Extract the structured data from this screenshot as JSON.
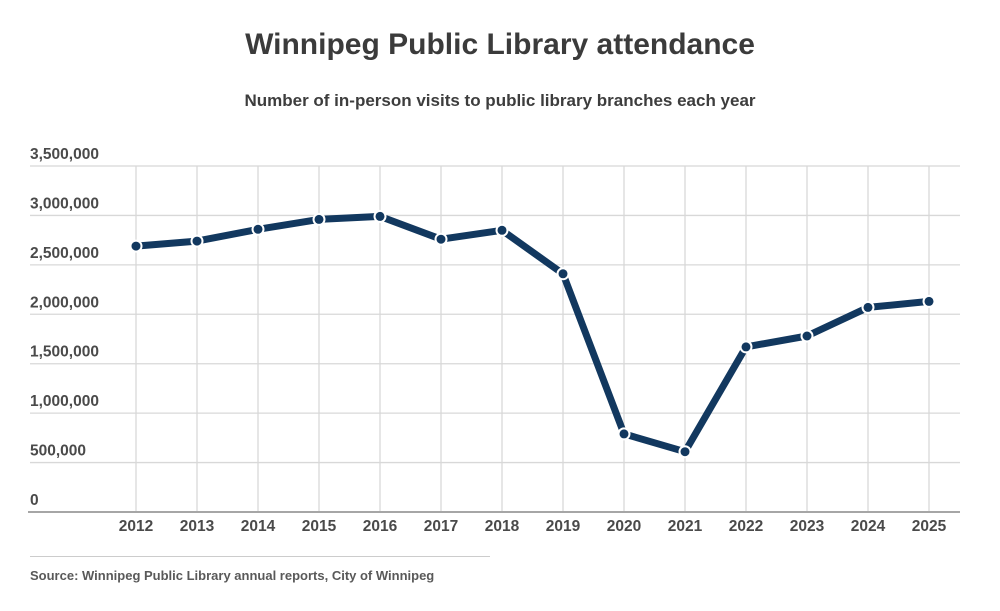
{
  "header": {
    "title": "Winnipeg Public Library attendance",
    "subtitle": "Number of in-person visits to public library branches each year"
  },
  "source": {
    "text": "Source: Winnipeg Public Library annual reports, City of Winnipeg"
  },
  "colors": {
    "line": "#12385f",
    "marker_fill": "#12385f",
    "marker_ring": "#ffffff",
    "grid": "#d8d8d8",
    "axis": "#a6a6a6",
    "title_text": "#3b3b3b",
    "tick_text": "#4a4a4a",
    "source_text": "#595959",
    "background": "#ffffff"
  },
  "chart_data": {
    "type": "line",
    "title": "Winnipeg Public Library attendance",
    "subtitle": "Number of in-person visits to public library branches each year",
    "xlabel": "",
    "ylabel": "",
    "categories": [
      2012,
      2013,
      2014,
      2015,
      2016,
      2017,
      2018,
      2019,
      2020,
      2021,
      2022,
      2023,
      2024,
      2025
    ],
    "values": [
      2690000,
      2740000,
      2860000,
      2960000,
      2990000,
      2760000,
      2850000,
      2410000,
      790000,
      610000,
      1670000,
      1780000,
      2070000,
      2130000
    ],
    "series_name": "In-person visits",
    "ylim": [
      0,
      3500000
    ],
    "y_ticks": [
      0,
      500000,
      1000000,
      1500000,
      2000000,
      2500000,
      3000000,
      3500000
    ],
    "y_tick_labels": [
      "0",
      "500,000",
      "1,000,000",
      "1,500,000",
      "2,000,000",
      "2,500,000",
      "3,000,000",
      "3,500,000"
    ],
    "grid": "both",
    "legend": "none",
    "marker": "circle-with-white-ring",
    "line_color": "#12385f"
  }
}
